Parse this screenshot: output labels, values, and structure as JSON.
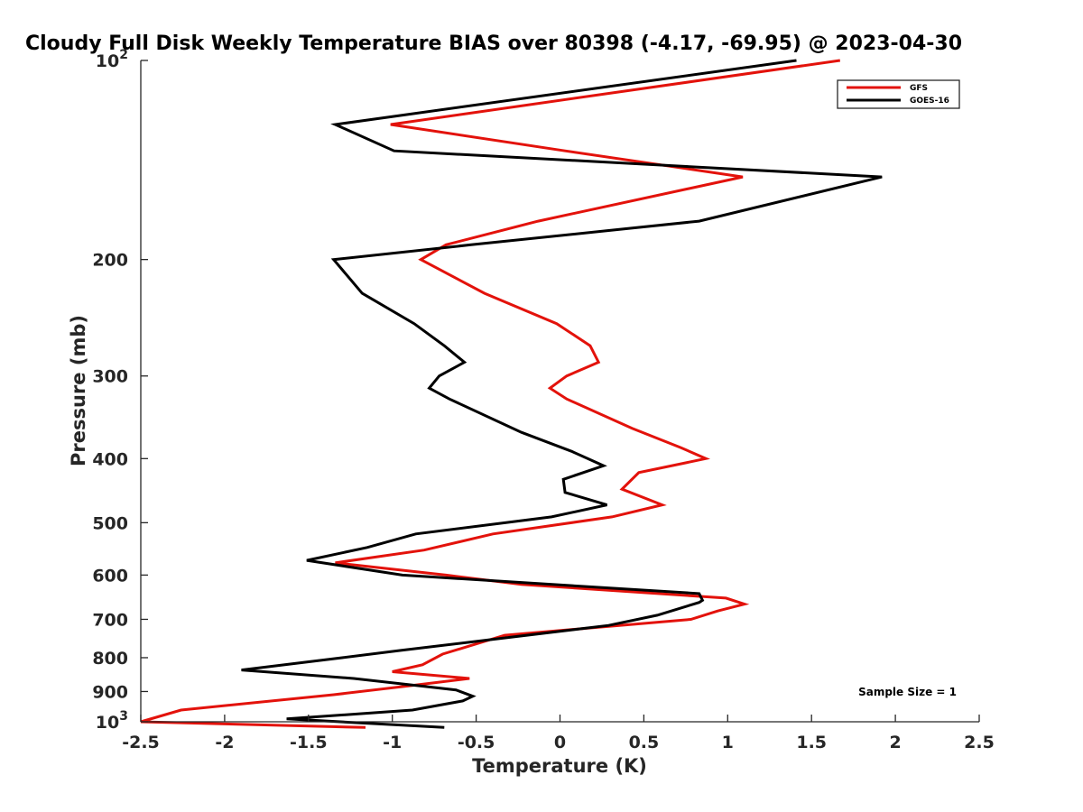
{
  "chart_data": {
    "type": "line",
    "title": "Cloudy Full Disk Weekly Temperature BIAS over 80398 (-4.17, -69.95) @ 2023-04-30",
    "xlabel": "Temperature (K)",
    "ylabel": "Pressure (mb)",
    "xlim": [
      -2.5,
      2.5
    ],
    "ylim": [
      100,
      1000
    ],
    "yscale": "log",
    "y_reversed": true,
    "grid": false,
    "legend_position": "top-right",
    "x_ticks": [
      {
        "value": -2.5,
        "label": "-2.5"
      },
      {
        "value": -2,
        "label": "-2"
      },
      {
        "value": -1.5,
        "label": "-1.5"
      },
      {
        "value": -1,
        "label": "-1"
      },
      {
        "value": -0.5,
        "label": "-0.5"
      },
      {
        "value": 0,
        "label": "0"
      },
      {
        "value": 0.5,
        "label": "0.5"
      },
      {
        "value": 1,
        "label": "1"
      },
      {
        "value": 1.5,
        "label": "1.5"
      },
      {
        "value": 2,
        "label": "2"
      },
      {
        "value": 2.5,
        "label": "2.5"
      }
    ],
    "y_ticks": [
      {
        "value": 100,
        "base": "10",
        "exp": "2"
      },
      {
        "value": 200,
        "label": "200"
      },
      {
        "value": 300,
        "label": "300"
      },
      {
        "value": 400,
        "label": "400"
      },
      {
        "value": 500,
        "label": "500"
      },
      {
        "value": 600,
        "label": "600"
      },
      {
        "value": 700,
        "label": "700"
      },
      {
        "value": 800,
        "label": "800"
      },
      {
        "value": 900,
        "label": "900"
      },
      {
        "value": 1000,
        "base": "10",
        "exp": "3"
      }
    ],
    "series": [
      {
        "name": "GFS",
        "color": "#e3120b",
        "points": [
          [
            1.67,
            100
          ],
          [
            -1.01,
            125
          ],
          [
            0.03,
            137
          ],
          [
            1.09,
            150
          ],
          [
            -0.13,
            175
          ],
          [
            -0.68,
            190
          ],
          [
            -0.83,
            200
          ],
          [
            -0.45,
            225
          ],
          [
            -0.02,
            250
          ],
          [
            0.18,
            270
          ],
          [
            0.23,
            286
          ],
          [
            0.04,
            300
          ],
          [
            -0.06,
            313
          ],
          [
            0.04,
            325
          ],
          [
            0.43,
            360
          ],
          [
            0.72,
            385
          ],
          [
            0.87,
            400
          ],
          [
            0.47,
            420
          ],
          [
            0.37,
            445
          ],
          [
            0.61,
            470
          ],
          [
            0.31,
            490
          ],
          [
            -0.4,
            520
          ],
          [
            -0.81,
            550
          ],
          [
            -1.34,
            575
          ],
          [
            -0.68,
            600
          ],
          [
            -0.23,
            620
          ],
          [
            0.99,
            650
          ],
          [
            1.1,
            664
          ],
          [
            0.94,
            680
          ],
          [
            0.78,
            700
          ],
          [
            -0.33,
            740
          ],
          [
            -0.7,
            790
          ],
          [
            -0.82,
            820
          ],
          [
            -1.0,
            840
          ],
          [
            -0.54,
            860
          ],
          [
            -0.86,
            880
          ],
          [
            -1.35,
            910
          ],
          [
            -2.26,
            960
          ],
          [
            -2.5,
            1000
          ],
          [
            -1.16,
            1020
          ]
        ]
      },
      {
        "name": "GOES-16",
        "color": "#000000",
        "points": [
          [
            1.41,
            100
          ],
          [
            -1.34,
            125
          ],
          [
            -0.99,
            137
          ],
          [
            1.92,
            150
          ],
          [
            0.83,
            175
          ],
          [
            -0.53,
            190
          ],
          [
            -1.35,
            200
          ],
          [
            -1.18,
            225
          ],
          [
            -0.87,
            250
          ],
          [
            -0.69,
            270
          ],
          [
            -0.57,
            286
          ],
          [
            -0.72,
            300
          ],
          [
            -0.78,
            313
          ],
          [
            -0.66,
            325
          ],
          [
            -0.23,
            365
          ],
          [
            0.07,
            390
          ],
          [
            0.26,
            410
          ],
          [
            0.02,
            430
          ],
          [
            0.03,
            450
          ],
          [
            0.28,
            470
          ],
          [
            -0.05,
            490
          ],
          [
            -0.86,
            520
          ],
          [
            -1.15,
            545
          ],
          [
            -1.51,
            570
          ],
          [
            -0.94,
            600
          ],
          [
            0.83,
            640
          ],
          [
            0.85,
            655
          ],
          [
            0.83,
            660
          ],
          [
            0.58,
            690
          ],
          [
            0.29,
            715
          ],
          [
            -0.95,
            780
          ],
          [
            -1.3,
            800
          ],
          [
            -1.9,
            835
          ],
          [
            -1.23,
            860
          ],
          [
            -0.62,
            895
          ],
          [
            -0.52,
            915
          ],
          [
            -0.58,
            930
          ],
          [
            -0.88,
            960
          ],
          [
            -1.63,
            990
          ],
          [
            -0.69,
            1020
          ]
        ]
      }
    ],
    "annotations": [
      "Sample Size = 1"
    ]
  }
}
